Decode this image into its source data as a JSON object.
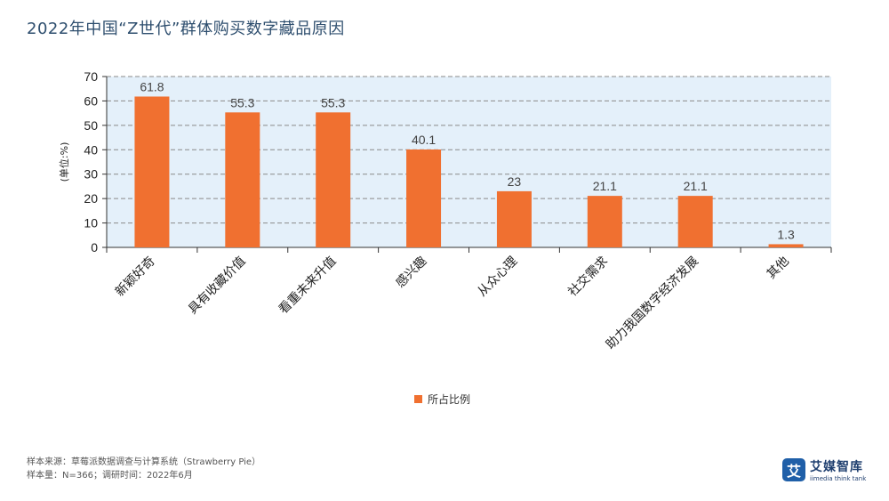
{
  "header": {
    "title": "2022年中国“Z世代”群体购买数字藏品原因"
  },
  "chart_data": {
    "type": "bar",
    "categories": [
      "新颖好奇",
      "具有收藏价值",
      "看重未来升值",
      "感兴趣",
      "从众心理",
      "社交需求",
      "助力我国数字经济发展",
      "其他"
    ],
    "series": [
      {
        "name": "所占比例",
        "values": [
          61.8,
          55.3,
          55.3,
          40.1,
          23,
          21.1,
          21.1,
          1.3
        ]
      }
    ],
    "ylabel": "(单位:%)",
    "xlabel": "",
    "ylim": [
      0,
      70
    ],
    "yticks": [
      0,
      10,
      20,
      30,
      40,
      50,
      60,
      70
    ],
    "grid": true,
    "legend_position": "bottom-center",
    "colors": {
      "bar": "#f07030",
      "plot_bg": "#e4f0fa",
      "grid": "#8a8a8a"
    }
  },
  "footer": {
    "source": "样本来源：草莓派数据调查与计算系统（Strawberry Pie）",
    "sample": "样本量：N=366；调研时间：2022年6月"
  },
  "logo": {
    "mark": "艾",
    "name": "艾媒智库",
    "sub": "iimedia think tank"
  }
}
